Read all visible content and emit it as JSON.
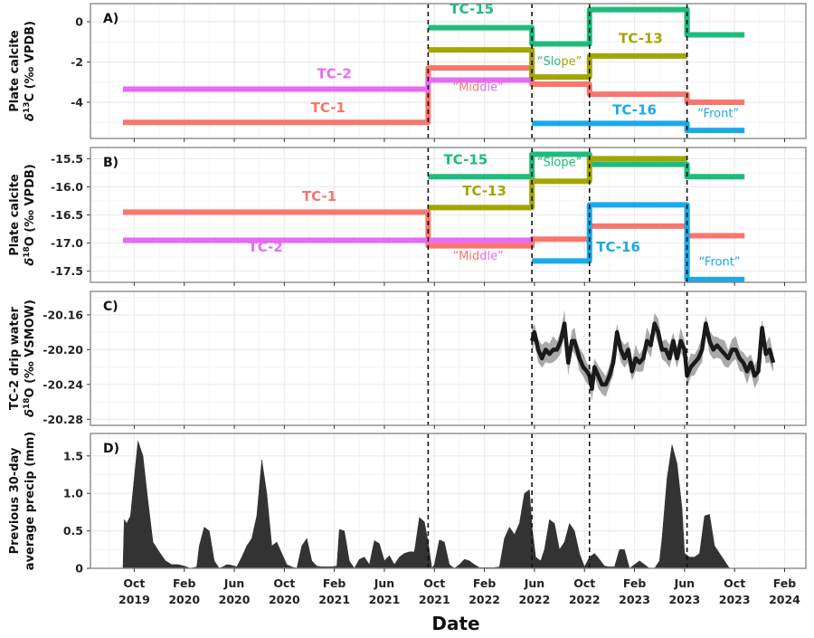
{
  "chart_data": [
    {
      "panel": "A)",
      "type": "line",
      "step": true,
      "ylabel_line1": "Plate calcite",
      "ylabel_line2_prefix": "δ",
      "ylabel_line2_sup": "13",
      "ylabel_line2_suffix": "C (‰ VPDB)",
      "yticks": [
        0,
        -2,
        -4
      ],
      "ytick_labels": [
        "0",
        "-2",
        "-4"
      ],
      "ylim": [
        -5.8,
        0.9
      ],
      "series": [
        {
          "name": "TC-1",
          "color": "#F8766D",
          "segments": [
            [
              -0.9,
              23.5,
              -5.0
            ],
            [
              23.5,
              31.8,
              -2.3
            ],
            [
              31.8,
              36.4,
              -3.1
            ],
            [
              36.4,
              44.2,
              -3.6
            ],
            [
              44.2,
              48.8,
              -4.0
            ]
          ]
        },
        {
          "name": "TC-2",
          "color": "#E76BF3",
          "segments": [
            [
              -0.9,
              23.5,
              -3.35
            ],
            [
              23.5,
              31.8,
              -2.9
            ]
          ]
        },
        {
          "name": "TC-15",
          "color": "#1EBC7C",
          "segments": [
            [
              23.5,
              31.8,
              -0.3
            ],
            [
              31.8,
              36.4,
              -1.1
            ],
            [
              36.4,
              44.2,
              0.6
            ],
            [
              44.2,
              48.8,
              -0.65
            ]
          ]
        },
        {
          "name": "TC-13",
          "color": "#A3A500",
          "segments": [
            [
              23.5,
              31.8,
              -1.4
            ],
            [
              31.8,
              36.4,
              -2.75
            ],
            [
              36.4,
              44.2,
              -1.7
            ]
          ]
        },
        {
          "name": "TC-16",
          "color": "#1BA9E8",
          "segments": [
            [
              31.8,
              44.2,
              -5.05
            ],
            [
              44.2,
              48.8,
              -5.4
            ]
          ]
        }
      ],
      "labels": [
        {
          "text": "TC-2",
          "color": "#E76BF3",
          "m": 16.0,
          "v": -2.8
        },
        {
          "text": "TC-1",
          "color": "#F8766D",
          "m": 15.5,
          "v": -4.5
        },
        {
          "text": "TC-15",
          "color": "#1EBC7C",
          "m": 27.0,
          "v": 0.4
        },
        {
          "text": "TC-13",
          "color": "#A3A500",
          "m": 40.5,
          "v": -1.05
        },
        {
          "text": "TC-16",
          "color": "#1BA9E8",
          "m": 40.0,
          "v": -4.6
        }
      ],
      "zones": [
        {
          "parts": [
            {
              "t": "“Mid",
              "color": "#F8766D"
            },
            {
              "t": "dle",
              "color": "#E76BF3"
            },
            {
              "t": "”",
              "color": "#E76BF3"
            }
          ],
          "m": 27.5,
          "v": -3.45
        },
        {
          "parts": [
            {
              "t": "“Slo",
              "color": "#1EBC7C"
            },
            {
              "t": "pe”",
              "color": "#A3A500"
            }
          ],
          "m": 34.0,
          "v": -2.15
        },
        {
          "parts": [
            {
              "t": "“Front”",
              "color": "#1BA9E8"
            }
          ],
          "m": 46.7,
          "v": -4.75
        }
      ]
    },
    {
      "panel": "B)",
      "type": "line",
      "step": true,
      "ylabel_line1": "Plate calcite",
      "ylabel_line2_prefix": "δ",
      "ylabel_line2_sup": "18",
      "ylabel_line2_suffix": "O (‰ VPDB)",
      "yticks": [
        -15.5,
        -16.0,
        -16.5,
        -17.0,
        -17.5
      ],
      "ytick_labels": [
        "-15.5",
        "-16.0",
        "-16.5",
        "-17.0",
        "-17.5"
      ],
      "ylim": [
        -17.7,
        -15.3
      ],
      "series": [
        {
          "name": "TC-1",
          "color": "#F8766D",
          "segments": [
            [
              -0.9,
              23.5,
              -16.45
            ],
            [
              23.5,
              31.8,
              -17.05
            ],
            [
              31.8,
              36.4,
              -16.93
            ],
            [
              36.4,
              44.2,
              -16.7
            ],
            [
              44.2,
              48.8,
              -16.87
            ]
          ]
        },
        {
          "name": "TC-2",
          "color": "#E76BF3",
          "segments": [
            [
              -0.9,
              31.8,
              -16.95
            ]
          ]
        },
        {
          "name": "TC-15",
          "color": "#1EBC7C",
          "segments": [
            [
              23.5,
              31.8,
              -15.82
            ],
            [
              31.8,
              36.4,
              -15.42
            ],
            [
              36.4,
              44.2,
              -15.6
            ],
            [
              44.2,
              48.8,
              -15.82
            ]
          ]
        },
        {
          "name": "TC-13",
          "color": "#A3A500",
          "segments": [
            [
              23.5,
              31.8,
              -16.37
            ],
            [
              31.8,
              36.4,
              -15.9
            ],
            [
              36.4,
              44.2,
              -15.5
            ]
          ]
        },
        {
          "name": "TC-16",
          "color": "#1BA9E8",
          "segments": [
            [
              31.8,
              36.4,
              -17.32
            ],
            [
              36.4,
              44.2,
              -16.32
            ],
            [
              44.2,
              48.8,
              -17.65
            ]
          ]
        }
      ],
      "labels": [
        {
          "text": "TC-1",
          "color": "#F8766D",
          "m": 14.8,
          "v": -16.25
        },
        {
          "text": "TC-2",
          "color": "#E76BF3",
          "m": 10.5,
          "v": -17.15
        },
        {
          "text": "TC-15",
          "color": "#1EBC7C",
          "m": 26.5,
          "v": -15.6
        },
        {
          "text": "TC-13",
          "color": "#A3A500",
          "m": 28.0,
          "v": -16.15
        },
        {
          "text": "TC-16",
          "color": "#1BA9E8",
          "m": 38.7,
          "v": -17.15
        }
      ],
      "zones": [
        {
          "parts": [
            {
              "t": "“Mid",
              "color": "#F8766D"
            },
            {
              "t": "dle",
              "color": "#E76BF3"
            },
            {
              "t": "”",
              "color": "#E76BF3"
            }
          ],
          "m": 27.5,
          "v": -17.3
        },
        {
          "parts": [
            {
              "t": "“Slope”",
              "color": "#1EBC7C"
            }
          ],
          "m": 34.0,
          "v": -15.63
        },
        {
          "parts": [
            {
              "t": "“Front”",
              "color": "#1BA9E8"
            }
          ],
          "m": 46.8,
          "v": -17.4
        }
      ]
    },
    {
      "panel": "C)",
      "type": "line",
      "ylabel_line1": "TC-2 drip water",
      "ylabel_line2_prefix": "δ",
      "ylabel_line2_sup": "18",
      "ylabel_line2_suffix": "O (‰ VSMOW)",
      "yticks": [
        -20.16,
        -20.2,
        -20.24,
        -20.28
      ],
      "ytick_labels": [
        "-20.16",
        "-20.20",
        "-20.24",
        "-20.28"
      ],
      "ylim": [
        -20.287,
        -20.133
      ],
      "series": [
        {
          "name": "TC-2 drip water δ18O",
          "color": "#1a1a1a",
          "band_color": "#9a9a9a",
          "band_halfwidth": 0.012,
          "m": [
            31.8,
            32.0,
            32.3,
            32.6,
            32.9,
            33.2,
            33.5,
            33.8,
            34.1,
            34.4,
            34.7,
            35.0,
            35.2,
            35.4,
            35.6,
            35.9,
            36.2,
            36.4,
            36.6,
            36.8,
            37.1,
            37.4,
            37.7,
            38.0,
            38.3,
            38.6,
            38.9,
            39.2,
            39.5,
            39.8,
            40.1,
            40.4,
            40.7,
            41.0,
            41.3,
            41.6,
            41.9,
            42.2,
            42.5,
            42.8,
            43.1,
            43.4,
            43.7,
            44.0,
            44.2,
            44.5,
            44.8,
            45.1,
            45.4,
            45.7,
            46.0,
            46.3,
            46.6,
            46.9,
            47.2,
            47.5,
            47.8,
            48.1,
            48.4,
            48.7,
            49.0,
            49.3,
            49.6,
            49.9,
            50.2,
            50.5,
            50.8,
            51.1
          ],
          "values": [
            -20.19,
            -20.18,
            -20.2,
            -20.21,
            -20.2,
            -20.205,
            -20.2,
            -20.2,
            -20.19,
            -20.17,
            -20.215,
            -20.19,
            -20.19,
            -20.2,
            -20.21,
            -20.22,
            -20.225,
            -20.23,
            -20.245,
            -20.22,
            -20.23,
            -20.24,
            -20.24,
            -20.23,
            -20.215,
            -20.18,
            -20.2,
            -20.21,
            -20.2,
            -20.225,
            -20.21,
            -20.215,
            -20.21,
            -20.19,
            -20.195,
            -20.17,
            -20.18,
            -20.2,
            -20.2,
            -20.21,
            -20.19,
            -20.21,
            -20.19,
            -20.2,
            -20.23,
            -20.22,
            -20.215,
            -20.21,
            -20.2,
            -20.17,
            -20.19,
            -20.2,
            -20.195,
            -20.2,
            -20.205,
            -20.21,
            -20.2,
            -20.2,
            -20.21,
            -20.215,
            -20.225,
            -20.215,
            -20.23,
            -20.225,
            -20.175,
            -20.205,
            -20.2,
            -20.215
          ]
        }
      ]
    },
    {
      "panel": "D)",
      "type": "area",
      "ylabel_line1": "Previous 30-day",
      "ylabel_line2": "average precip (mm)",
      "yticks": [
        0,
        0.5,
        1.0,
        1.5
      ],
      "ytick_labels": [
        "0",
        "0.5",
        "1.0",
        "1.5"
      ],
      "ylim": [
        0,
        1.8
      ],
      "series": [
        {
          "name": "Previous 30-day average precip",
          "color": "#333333",
          "m": [
            -0.9,
            -0.8,
            -0.6,
            -0.3,
            0.0,
            0.3,
            0.7,
            1.1,
            1.5,
            2.0,
            2.5,
            3.0,
            3.5,
            4.0,
            4.5,
            5.0,
            5.2,
            5.6,
            6.0,
            6.4,
            6.8,
            7.2,
            7.4,
            7.8,
            8.2,
            8.6,
            9.0,
            9.4,
            9.8,
            10.2,
            10.6,
            11.0,
            11.4,
            11.8,
            12.2,
            12.6,
            13.0,
            13.4,
            13.8,
            14.2,
            14.6,
            15.0,
            15.4,
            15.8,
            16.2,
            16.4,
            16.8,
            17.2,
            17.6,
            18.0,
            18.4,
            18.8,
            19.2,
            19.6,
            20.0,
            20.4,
            20.8,
            21.2,
            21.6,
            22.0,
            22.4,
            22.8,
            23.2,
            23.5,
            23.8,
            24.0,
            24.4,
            24.8,
            25.2,
            25.6,
            26.0,
            26.4,
            26.8,
            27.2,
            27.6,
            28.0,
            28.4,
            28.8,
            29.2,
            29.6,
            30.0,
            30.4,
            30.8,
            31.2,
            31.6,
            31.8,
            32.1,
            32.5,
            32.8,
            33.2,
            33.6,
            34.0,
            34.4,
            34.8,
            35.2,
            35.6,
            36.0,
            36.4,
            36.8,
            37.2,
            37.6,
            38.0,
            38.4,
            38.8,
            39.2,
            39.6,
            40.0,
            40.4,
            40.8,
            41.2,
            41.6,
            42.0,
            42.2,
            42.6,
            43.0,
            43.4,
            43.8,
            44.0,
            44.4,
            44.8,
            45.2,
            45.6,
            46.0,
            46.4,
            46.8,
            47.2,
            47.6,
            48.0,
            48.4,
            48.8,
            49.2,
            49.6,
            50.0,
            50.4,
            50.8
          ],
          "values": [
            0.0,
            0.65,
            0.6,
            0.7,
            1.2,
            1.7,
            1.5,
            0.9,
            0.35,
            0.22,
            0.1,
            0.05,
            0.05,
            0.03,
            0.0,
            0.02,
            0.3,
            0.55,
            0.5,
            0.1,
            0.0,
            0.03,
            0.05,
            0.04,
            0.02,
            0.15,
            0.3,
            0.4,
            0.7,
            1.45,
            1.0,
            0.3,
            0.35,
            0.2,
            0.05,
            0.02,
            0.0,
            0.3,
            0.4,
            0.1,
            0.03,
            0.02,
            0.02,
            0.02,
            0.03,
            0.52,
            0.5,
            0.1,
            0.0,
            0.12,
            0.15,
            0.05,
            0.37,
            0.33,
            0.1,
            0.17,
            0.05,
            0.15,
            0.2,
            0.22,
            0.22,
            0.68,
            0.62,
            0.35,
            0.0,
            0.05,
            0.38,
            0.35,
            0.05,
            0.0,
            0.05,
            0.12,
            0.1,
            0.05,
            0.01,
            0.01,
            0.01,
            0.01,
            0.02,
            0.4,
            0.55,
            0.45,
            0.6,
            1.0,
            1.05,
            0.55,
            0.15,
            0.1,
            0.25,
            0.65,
            0.6,
            0.25,
            0.35,
            0.6,
            0.5,
            0.2,
            0.02,
            0.15,
            0.2,
            0.12,
            0.03,
            0.02,
            0.02,
            0.25,
            0.25,
            0.0,
            0.05,
            0.1,
            0.05,
            0.0,
            0.0,
            0.1,
            0.4,
            1.2,
            1.65,
            1.4,
            0.8,
            0.2,
            0.15,
            0.15,
            0.2,
            0.7,
            0.72,
            0.3,
            0.2,
            0.1,
            0.0
          ],
          "note": "time series ends before late 2023; values approximated from pixels"
        }
      ]
    }
  ],
  "x_axis": {
    "title": "Date",
    "tick_labels": [
      {
        "line1": "Oct",
        "line2": "2019",
        "m": 0
      },
      {
        "line1": "Feb",
        "line2": "2020",
        "m": 4
      },
      {
        "line1": "Jun",
        "line2": "2020",
        "m": 8
      },
      {
        "line1": "Oct",
        "line2": "2020",
        "m": 12
      },
      {
        "line1": "Feb",
        "line2": "2021",
        "m": 16
      },
      {
        "line1": "Jun",
        "line2": "2021",
        "m": 20
      },
      {
        "line1": "Oct",
        "line2": "2021",
        "m": 24
      },
      {
        "line1": "Feb",
        "line2": "2022",
        "m": 28
      },
      {
        "line1": "Jun",
        "line2": "2022",
        "m": 32
      },
      {
        "line1": "Oct",
        "line2": "2022",
        "m": 36
      },
      {
        "line1": "Feb",
        "line2": "2023",
        "m": 40
      },
      {
        "line1": "Jun",
        "line2": "2023",
        "m": 44
      },
      {
        "line1": "Oct",
        "line2": "2023",
        "m": 48
      },
      {
        "line1": "Feb",
        "line2": "2024",
        "m": 52
      }
    ],
    "xlim_months": [
      -3.5,
      53.7
    ]
  },
  "event_lines_months": [
    23.5,
    31.8,
    36.4,
    44.2
  ],
  "style": {
    "grid_color": "#ebebeb",
    "grid_minor_color": "#f4f4f4",
    "panel_border": "#8c8c8c",
    "event_line_color": "#111111"
  }
}
